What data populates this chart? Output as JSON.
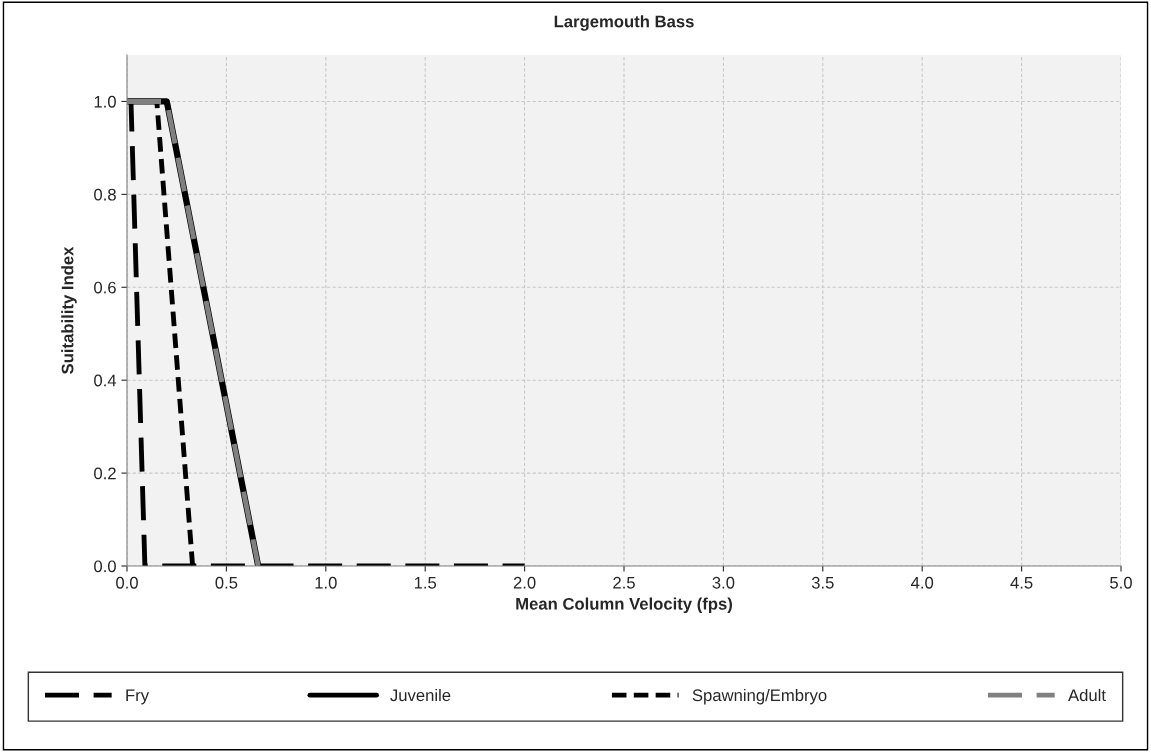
{
  "chart_data": {
    "type": "line",
    "title": "Largemouth Bass",
    "xlabel": "Mean Column Velocity (fps)",
    "ylabel": "Suitability Index",
    "xlim": [
      0,
      5
    ],
    "ylim": [
      0,
      1.1
    ],
    "xticks": [
      {
        "value": 0,
        "label": "0.0"
      },
      {
        "value": 0.5,
        "label": "0.5"
      },
      {
        "value": 1,
        "label": "1.0"
      },
      {
        "value": 1.5,
        "label": "1.5"
      },
      {
        "value": 2,
        "label": "2.0"
      },
      {
        "value": 2.5,
        "label": "2.5"
      },
      {
        "value": 3,
        "label": "3.0"
      },
      {
        "value": 3.5,
        "label": "3.5"
      },
      {
        "value": 4,
        "label": "4.0"
      },
      {
        "value": 4.5,
        "label": "4.5"
      },
      {
        "value": 5,
        "label": "5.0"
      }
    ],
    "yticks": [
      {
        "value": 0,
        "label": "0.0"
      },
      {
        "value": 0.2,
        "label": "0.2"
      },
      {
        "value": 0.4,
        "label": "0.4"
      },
      {
        "value": 0.6,
        "label": "0.6"
      },
      {
        "value": 0.8,
        "label": "0.8"
      },
      {
        "value": 1,
        "label": "1.0"
      }
    ],
    "grid": true,
    "legend": "bottom",
    "marker": "none",
    "series": [
      {
        "name": "Fry",
        "color": "#000000",
        "line_style": "longdash",
        "x": [
          0,
          0.02,
          0.09,
          2.0
        ],
        "values": [
          1,
          1,
          0,
          0
        ]
      },
      {
        "name": "Juvenile",
        "color": "#000000",
        "line_style": "solid",
        "x": [
          0,
          0.2,
          0.66
        ],
        "values": [
          1,
          1,
          0
        ]
      },
      {
        "name": "Spawning/Embryo",
        "color": "#000000",
        "line_style": "dashed",
        "x": [
          0,
          0.15,
          0.33
        ],
        "values": [
          1,
          1,
          0
        ]
      },
      {
        "name": "Adult",
        "color": "#808080",
        "line_style": "longdash",
        "x": [
          0,
          0.2,
          0.66
        ],
        "values": [
          1,
          1,
          0
        ]
      }
    ]
  }
}
